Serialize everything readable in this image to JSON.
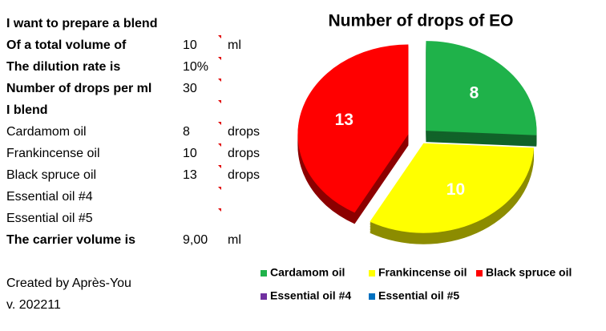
{
  "sheet": {
    "rows": [
      {
        "label": "I want to prepare a blend",
        "bold": true
      },
      {
        "label": "Of a total volume of",
        "value": "10",
        "unit": "ml",
        "bold": true
      },
      {
        "label": "The dilution rate is",
        "value": "10%",
        "bold": true
      },
      {
        "label": "Number of drops per ml",
        "value": "30",
        "bold": true
      },
      {
        "label": "I blend",
        "bold": true
      },
      {
        "label": "Cardamom oil",
        "value": "8",
        "unit": "drops"
      },
      {
        "label": "Frankincense oil",
        "value": "10",
        "unit": "drops"
      },
      {
        "label": "Black spruce oil",
        "value": "13",
        "unit": "drops"
      },
      {
        "label": "Essential oil #4"
      },
      {
        "label": "Essential oil #5"
      },
      {
        "label": "The carrier volume is",
        "value": "9,00",
        "unit": "ml",
        "bold": true
      }
    ],
    "credit": "Created by Après-You",
    "version": "v. 202211"
  },
  "chart_data": {
    "type": "pie",
    "title": "Number of drops of EO",
    "categories": [
      "Cardamom oil",
      "Frankincense oil",
      "Black spruce oil",
      "Essential oil #4",
      "Essential oil #5"
    ],
    "values": [
      8,
      10,
      13,
      null,
      null
    ],
    "colors": [
      "#1fb24a",
      "#ffff00",
      "#ff0000",
      "#7030a0",
      "#0070c0"
    ],
    "legend": "bottom"
  }
}
